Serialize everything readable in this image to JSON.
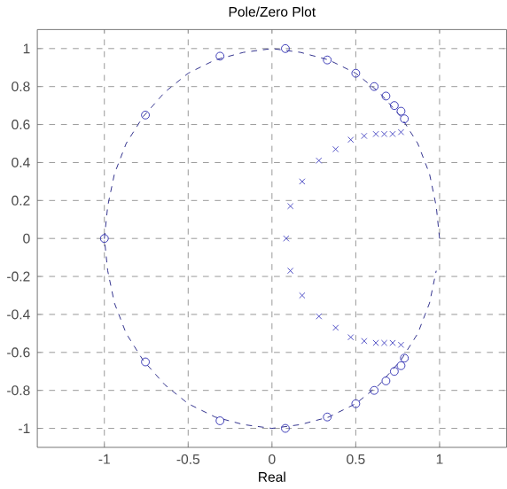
{
  "chart_data": {
    "type": "scatter",
    "title": "Pole/Zero Plot",
    "xlabel": "Real",
    "xlim": [
      -1.4,
      1.4
    ],
    "ylim": [
      -1.1,
      1.1
    ],
    "xticks": [
      -1,
      -0.5,
      0,
      0.5,
      1
    ],
    "yticks": [
      -1,
      -0.8,
      -0.6,
      -0.4,
      -0.2,
      0,
      0.2,
      0.4,
      0.6,
      0.8,
      1
    ],
    "grid": true,
    "series": [
      {
        "type": "line",
        "line_style": "dashed",
        "marker": "none",
        "color": "#1a1a80",
        "x": [
          1,
          0.98,
          0.94,
          0.87,
          0.77,
          0.64,
          0.5,
          0.34,
          0.17,
          0,
          -0.17,
          -0.34,
          -0.5,
          -0.64,
          -0.77,
          -0.87,
          -0.94,
          -0.98,
          -1,
          -0.98,
          -0.94,
          -0.87,
          -0.77,
          -0.64,
          -0.5,
          -0.34,
          -0.17,
          0,
          0.17,
          0.34,
          0.5,
          0.64,
          0.77,
          0.87,
          0.94,
          0.98
        ],
        "values": [
          0,
          0.17,
          0.34,
          0.5,
          0.64,
          0.77,
          0.87,
          0.94,
          0.98,
          1,
          0.98,
          0.94,
          0.87,
          0.77,
          0.64,
          0.5,
          0.34,
          0.17,
          0,
          -0.17,
          -0.34,
          -0.5,
          -0.64,
          -0.77,
          -0.87,
          -0.94,
          -0.98,
          -1,
          -0.98,
          -0.94,
          -0.87,
          -0.77,
          -0.64,
          -0.5,
          -0.34,
          -0.17
        ]
      },
      {
        "marker": "circle",
        "color": "#2a2ab0",
        "x": [
          -1,
          -0.755,
          -0.31,
          0.08,
          0.33,
          0.5,
          0.61,
          0.68,
          0.73,
          0.77,
          0.79,
          -0.755,
          -0.31,
          0.08,
          0.33,
          0.5,
          0.61,
          0.68,
          0.73,
          0.77,
          0.79
        ],
        "values": [
          0,
          0.65,
          0.96,
          1.0,
          0.94,
          0.87,
          0.8,
          0.75,
          0.7,
          0.67,
          0.63,
          -0.65,
          -0.96,
          -1.0,
          -0.94,
          -0.87,
          -0.8,
          -0.75,
          -0.7,
          -0.67,
          -0.63
        ]
      },
      {
        "marker": "cross",
        "color": "#4040c0",
        "x": [
          0.085,
          0.11,
          0.18,
          0.28,
          0.38,
          0.47,
          0.55,
          0.62,
          0.67,
          0.72,
          0.77,
          0.11,
          0.18,
          0.28,
          0.38,
          0.47,
          0.55,
          0.62,
          0.67,
          0.72,
          0.77
        ],
        "values": [
          0,
          0.17,
          0.3,
          0.41,
          0.47,
          0.52,
          0.54,
          0.55,
          0.55,
          0.55,
          0.56,
          -0.17,
          -0.3,
          -0.41,
          -0.47,
          -0.52,
          -0.54,
          -0.55,
          -0.55,
          -0.55,
          -0.56
        ]
      }
    ]
  }
}
